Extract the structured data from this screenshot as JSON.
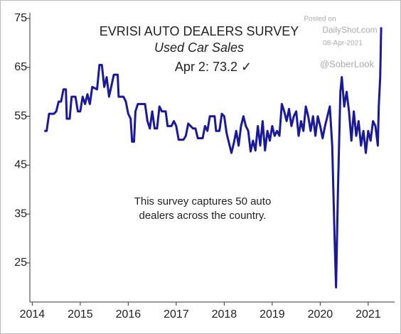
{
  "chart_data": {
    "type": "line",
    "title": "EVRISI AUTO DEALERS SURVEY",
    "subtitle": "Used Car Sales",
    "annotation": "Apr 2: 73.2 ✓",
    "note": "This survey captures 50 auto dealers across the country.",
    "watermark": [
      "Posted on",
      "DailyShot.com",
      "08-Apr-2021",
      "@SoberLook"
    ],
    "color": "#1a1a99",
    "xlim": [
      2013.95,
      2021.55
    ],
    "xticks": [
      2014,
      2015,
      2016,
      2017,
      2018,
      2019,
      2020,
      2021
    ],
    "ylim": [
      17,
      75
    ],
    "yticks": [
      25,
      35,
      45,
      55,
      65,
      75
    ],
    "x": [
      2014.25,
      2014.3,
      2014.35,
      2014.45,
      2014.5,
      2014.55,
      2014.6,
      2014.65,
      2014.7,
      2014.72,
      2014.78,
      2014.82,
      2014.9,
      2014.95,
      2015.0,
      2015.05,
      2015.1,
      2015.15,
      2015.2,
      2015.25,
      2015.35,
      2015.4,
      2015.45,
      2015.5,
      2015.55,
      2015.6,
      2015.7,
      2015.78,
      2015.8,
      2015.9,
      2015.95,
      2016.0,
      2016.05,
      2016.08,
      2016.12,
      2016.15,
      2016.2,
      2016.35,
      2016.4,
      2016.45,
      2016.5,
      2016.55,
      2016.6,
      2016.65,
      2016.7,
      2016.78,
      2016.82,
      2016.9,
      2016.95,
      2017.0,
      2017.05,
      2017.15,
      2017.2,
      2017.25,
      2017.35,
      2017.4,
      2017.45,
      2017.55,
      2017.6,
      2017.65,
      2017.7,
      2017.8,
      2017.83,
      2017.9,
      2017.95,
      2018.0,
      2018.05,
      2018.1,
      2018.15,
      2018.2,
      2018.25,
      2018.3,
      2018.35,
      2018.4,
      2018.45,
      2018.5,
      2018.55,
      2018.6,
      2018.65,
      2018.7,
      2018.75,
      2018.8,
      2018.85,
      2018.9,
      2018.95,
      2019.0,
      2019.05,
      2019.1,
      2019.15,
      2019.2,
      2019.25,
      2019.3,
      2019.35,
      2019.4,
      2019.45,
      2019.5,
      2019.55,
      2019.6,
      2019.65,
      2019.7,
      2019.75,
      2019.8,
      2019.85,
      2019.9,
      2019.95,
      2020.0,
      2020.05,
      2020.1,
      2020.15,
      2020.2,
      2020.25,
      2020.3,
      2020.33,
      2020.37,
      2020.42,
      2020.45,
      2020.5,
      2020.55,
      2020.6,
      2020.65,
      2020.7,
      2020.75,
      2020.8,
      2020.85,
      2020.9,
      2020.95,
      2021.0,
      2021.05,
      2021.1,
      2021.15,
      2021.2,
      2021.22,
      2021.25,
      2021.27
    ],
    "values": [
      52,
      52,
      55.5,
      55.5,
      56,
      58,
      58,
      60.5,
      60.5,
      54.5,
      54.5,
      59,
      59,
      56,
      56,
      59,
      57.5,
      59.5,
      57.5,
      61,
      60.5,
      65.5,
      65.5,
      61,
      63,
      59,
      63.5,
      63.5,
      59,
      59,
      58,
      55.5,
      54.5,
      49.8,
      49.8,
      56,
      57.5,
      57.5,
      54,
      52.5,
      56,
      52.5,
      52.5,
      57,
      56,
      56,
      53,
      53,
      54,
      53,
      50.2,
      50.2,
      51,
      53.5,
      52.5,
      52.5,
      50.5,
      50.5,
      53,
      52,
      55,
      55,
      52,
      52,
      55.5,
      55,
      51.5,
      49.5,
      47.5,
      49.5,
      52,
      49,
      53,
      55,
      53,
      52,
      47.8,
      50,
      48,
      53,
      49,
      54,
      48,
      52,
      50,
      53,
      51,
      52,
      51,
      57.5,
      56,
      54,
      56.5,
      53,
      55,
      56,
      51,
      54,
      52,
      57,
      55,
      52,
      55,
      51,
      55,
      53,
      50.5,
      53,
      55,
      57,
      49,
      30,
      20,
      40,
      60,
      63,
      57,
      60,
      56,
      50,
      56,
      51,
      54,
      49,
      52,
      47.5,
      52,
      50,
      54,
      53,
      49,
      57,
      63,
      73.2
    ]
  }
}
